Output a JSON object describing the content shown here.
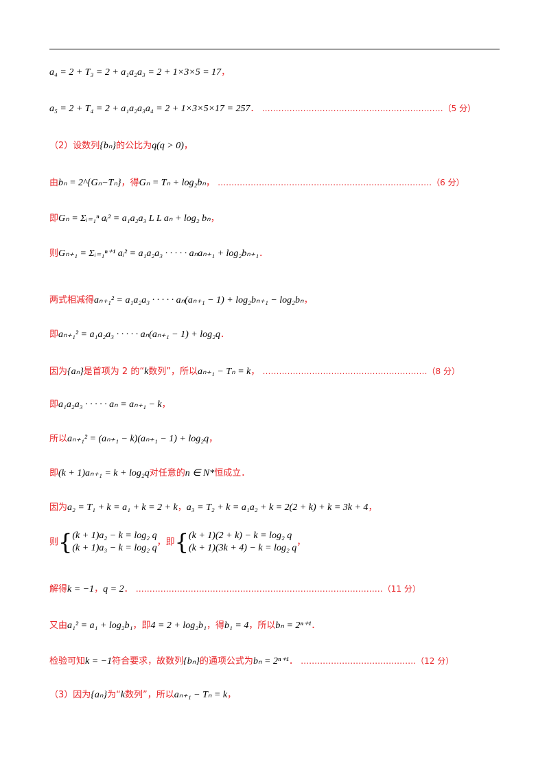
{
  "lines": {
    "l1": {
      "math": "a₄ = 2 + T₃ = 2 + a₁a₂a₃ = 2 + 1×3×5 = 17",
      "tail": "，"
    },
    "l2": {
      "math": "a₅ = 2 + T₄ = 2 + a₁a₂a₃a₄ = 2 + 1×3×5×17 = 257",
      "tail": "．",
      "dots": "…………………………………………………………",
      "score": "（5 分）"
    },
    "l3": {
      "pre": "（2）设数列",
      "m1": "{bₙ}",
      "mid": "的公比为",
      "m2": "q(q > 0)",
      "tail": "，"
    },
    "l4": {
      "pre": "由",
      "m1": "bₙ = 2^{Gₙ−Tₙ}",
      "mid": "，得",
      "m2": "Gₙ = Tₙ + log₂bₙ",
      "tail": "，",
      "dots": "……………………………………………………………………",
      "score": "（6 分）"
    },
    "l5": {
      "pre": "即",
      "m1": "Gₙ = Σᵢ₌₁ⁿ aᵢ² = a₁a₂a₃ L L aₙ + log₂ bₙ",
      "tail": "，"
    },
    "l6": {
      "pre": "则",
      "m1": "Gₙ₊₁ = Σᵢ₌₁ⁿ⁺¹ aᵢ² = a₁a₂a₃ · · · · · aₙaₙ₊₁ + log₂bₙ₊₁",
      "tail": "．"
    },
    "l7": {
      "pre": "两式相减得",
      "m1": "aₙ₊₁² = a₁a₂a₃ · · · · · aₙ(aₙ₊₁ − 1) + log₂bₙ₊₁ − log₂bₙ",
      "tail": "，"
    },
    "l8": {
      "pre": "即",
      "m1": "aₙ₊₁² = a₁a₂a₃ · · · · · aₙ(aₙ₊₁ − 1) + log₂q",
      "tail": "．"
    },
    "l9": {
      "pre": "因为",
      "m1": "{aₙ}",
      "mid": "是首项为 2 的“",
      "m2": "k",
      "mid2": "数列”，所以",
      "m3": "aₙ₊₁ − Tₙ = k",
      "tail": "，",
      "dots": "……………………………………………………",
      "score": "（8 分）"
    },
    "l10": {
      "pre": "即",
      "m1": "a₁a₂a₃ · · · · · aₙ = aₙ₊₁ − k",
      "tail": "，"
    },
    "l11": {
      "pre": "所以",
      "m1": "aₙ₊₁² = (aₙ₊₁ − k)(aₙ₊₁ − 1) + log₂q",
      "tail": "，"
    },
    "l12": {
      "pre": "即",
      "m1": "(k + 1)aₙ₊₁ = k + log₂q",
      "mid": "对任意的",
      "m2": "n ∈ N*",
      "tail": "恒成立．"
    },
    "l13": {
      "pre": "因为",
      "m1": "a₂ = T₁ + k = a₁ + k = 2 + k",
      "mid": "，",
      "m2": "a₃ = T₂ + k = a₁a₂ + k = 2(2 + k) + k = 3k + 4",
      "tail": "，"
    },
    "l14": {
      "pre": "则",
      "s1a": "(k + 1)a₂ − k = log₂ q",
      "s1b": "(k + 1)a₃ − k = log₂ q",
      "mid": "，即",
      "s2a": "(k + 1)(2 + k) − k = log₂ q",
      "s2b": "(k + 1)(3k + 4) − k = log₂ q",
      "tail": "，"
    },
    "l15": {
      "pre": "解得",
      "m1": "k = −1",
      "mid": "，",
      "m2": "q = 2",
      "tail": "．",
      "dots": "………………………………………………………………………………",
      "score": "（11 分）"
    },
    "l16": {
      "pre": "又由",
      "m1": "a₁² = a₁ + log₂b₁",
      "mid": "，即",
      "m2": "4 = 2 + log₂b₁",
      "mid2": "，得",
      "m3": "b₁ = 4",
      "mid3": "，所以",
      "m4": "bₙ = 2ⁿ⁺¹",
      "tail": "．"
    },
    "l17": {
      "pre": "检验可知",
      "m1": "k = −1",
      "mid": "符合要求，故数列",
      "m2": "{bₙ}",
      "mid2": "的通项公式为",
      "m3": "bₙ = 2ⁿ⁺¹",
      "tail": "．",
      "dots": "……………………………………",
      "score": "（12 分）"
    },
    "l18": {
      "pre": "（3）因为",
      "m1": "{aₙ}",
      "mid": "为“",
      "m2": "k",
      "mid2": "数列”，所以",
      "m3": "aₙ₊₁ − Tₙ = k",
      "tail": "，"
    }
  }
}
